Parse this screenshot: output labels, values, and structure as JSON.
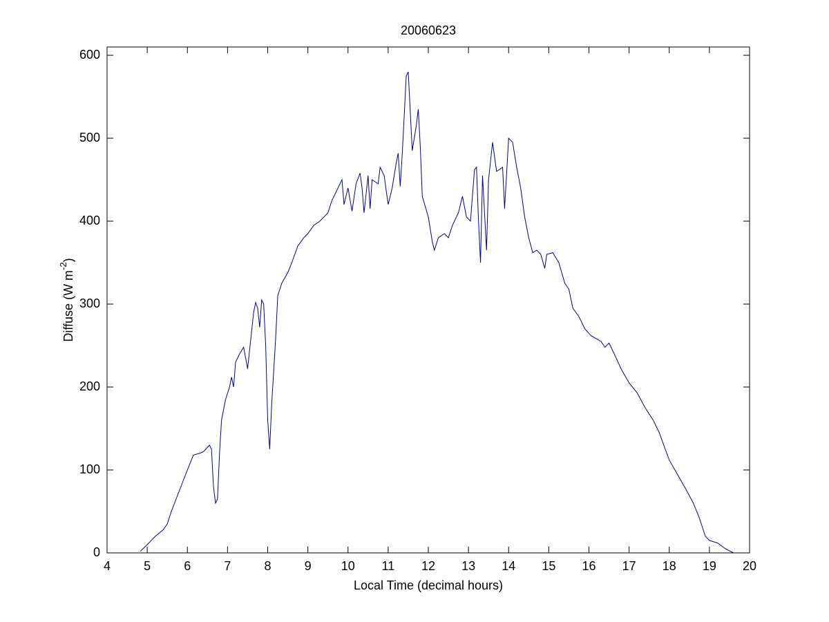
{
  "chart_data": {
    "type": "line",
    "title": "20060623",
    "xlabel": "Local Time (decimal hours)",
    "ylabel": {
      "text": "Diffuse (W m",
      "superscript": "-2",
      "suffix": ")"
    },
    "xlim": [
      4,
      20
    ],
    "xticks": [
      4,
      5,
      6,
      7,
      8,
      9,
      10,
      11,
      12,
      13,
      14,
      15,
      16,
      17,
      18,
      19,
      20
    ],
    "ylim": [
      0,
      600
    ],
    "yticks": [
      0,
      100,
      200,
      300,
      400,
      500,
      600
    ],
    "series": [
      {
        "color": "#00008b",
        "x": [
          4.83,
          5.0,
          5.2,
          5.4,
          5.5,
          5.6,
          5.8,
          6.0,
          6.15,
          6.3,
          6.4,
          6.55,
          6.6,
          6.65,
          6.7,
          6.75,
          6.8,
          6.85,
          6.95,
          7.05,
          7.1,
          7.15,
          7.2,
          7.3,
          7.4,
          7.45,
          7.5,
          7.55,
          7.65,
          7.7,
          7.75,
          7.8,
          7.85,
          7.9,
          7.95,
          8.0,
          8.05,
          8.1,
          8.2,
          8.25,
          8.35,
          8.5,
          8.6,
          8.75,
          8.9,
          9.0,
          9.15,
          9.3,
          9.5,
          9.6,
          9.75,
          9.85,
          9.9,
          10.0,
          10.1,
          10.2,
          10.3,
          10.35,
          10.4,
          10.5,
          10.55,
          10.6,
          10.75,
          10.8,
          10.9,
          11.0,
          11.1,
          11.2,
          11.25,
          11.3,
          11.35,
          11.45,
          11.5,
          11.6,
          11.7,
          11.75,
          11.8,
          11.85,
          12.0,
          12.1,
          12.15,
          12.25,
          12.4,
          12.5,
          12.6,
          12.75,
          12.85,
          12.95,
          13.05,
          13.15,
          13.2,
          13.25,
          13.3,
          13.35,
          13.45,
          13.5,
          13.6,
          13.7,
          13.85,
          13.9,
          14.0,
          14.1,
          14.2,
          14.3,
          14.4,
          14.5,
          14.6,
          14.7,
          14.8,
          14.9,
          14.95,
          15.1,
          15.25,
          15.4,
          15.5,
          15.6,
          15.75,
          15.9,
          16.05,
          16.3,
          16.4,
          16.5,
          16.65,
          16.8,
          17.0,
          17.2,
          17.4,
          17.6,
          17.75,
          17.9,
          18.0,
          18.2,
          18.4,
          18.6,
          18.75,
          18.9,
          19.0,
          19.2,
          19.4,
          19.6
        ],
        "values": [
          2,
          10,
          20,
          28,
          35,
          50,
          75,
          100,
          118,
          120,
          122,
          130,
          125,
          80,
          60,
          65,
          120,
          160,
          185,
          200,
          212,
          200,
          230,
          240,
          248,
          235,
          222,
          245,
          290,
          302,
          295,
          272,
          305,
          300,
          250,
          160,
          125,
          180,
          260,
          310,
          325,
          338,
          350,
          370,
          380,
          385,
          395,
          400,
          410,
          425,
          440,
          450,
          420,
          440,
          412,
          445,
          458,
          440,
          410,
          455,
          415,
          450,
          445,
          465,
          455,
          420,
          440,
          470,
          482,
          442,
          480,
          575,
          580,
          485,
          515,
          535,
          490,
          430,
          405,
          375,
          365,
          380,
          385,
          380,
          395,
          410,
          430,
          405,
          400,
          462,
          465,
          400,
          350,
          455,
          365,
          450,
          495,
          460,
          465,
          415,
          500,
          495,
          465,
          440,
          405,
          380,
          362,
          365,
          360,
          343,
          360,
          362,
          350,
          325,
          318,
          295,
          285,
          270,
          262,
          255,
          248,
          253,
          238,
          222,
          205,
          193,
          175,
          160,
          145,
          125,
          112,
          95,
          78,
          60,
          42,
          20,
          15,
          12,
          5,
          0
        ]
      }
    ]
  }
}
